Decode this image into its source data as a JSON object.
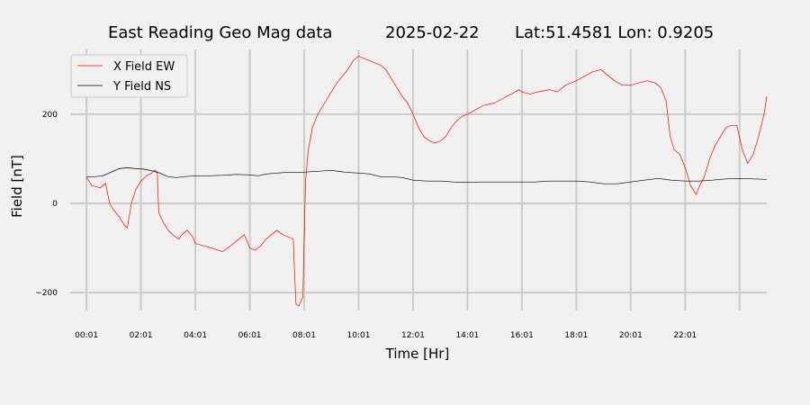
{
  "chart_data": {
    "type": "line",
    "title_parts": [
      "East Reading Geo Mag data",
      "2025-02-22",
      "Lat:51.4581  Lon: 0.9205"
    ],
    "xlabel": "Time  [Hr]",
    "ylabel": "Field  [nT]",
    "xlim": [
      -0.6,
      25.0
    ],
    "ylim": [
      -240,
      345
    ],
    "x_ticks": [
      {
        "x": 0.0,
        "label": "00:01"
      },
      {
        "x": 2.0,
        "label": "02:01"
      },
      {
        "x": 4.0,
        "label": "04:01"
      },
      {
        "x": 6.0,
        "label": "06:01"
      },
      {
        "x": 8.0,
        "label": "08:01"
      },
      {
        "x": 10.0,
        "label": "10:01"
      },
      {
        "x": 12.0,
        "label": "12:01"
      },
      {
        "x": 14.0,
        "label": "14:01"
      },
      {
        "x": 16.0,
        "label": "16:01"
      },
      {
        "x": 18.0,
        "label": "18:01"
      },
      {
        "x": 20.0,
        "label": "20:01"
      },
      {
        "x": 22.0,
        "label": "22:01"
      }
    ],
    "extra_vgrid": [
      24.0
    ],
    "y_ticks": [
      {
        "y": -200,
        "label": "−200"
      },
      {
        "y": 0,
        "label": "0"
      },
      {
        "y": 200,
        "label": "200"
      }
    ],
    "grid": true,
    "legend_position": "top-left",
    "series": [
      {
        "name": "X Field EW",
        "color": "#ff0000",
        "points": [
          [
            0.0,
            58
          ],
          [
            0.2,
            40
          ],
          [
            0.5,
            35
          ],
          [
            0.7,
            45
          ],
          [
            0.85,
            0
          ],
          [
            1.0,
            -15
          ],
          [
            1.2,
            -30
          ],
          [
            1.4,
            -50
          ],
          [
            1.5,
            -55
          ],
          [
            1.65,
            0
          ],
          [
            1.8,
            30
          ],
          [
            2.0,
            50
          ],
          [
            2.2,
            62
          ],
          [
            2.4,
            68
          ],
          [
            2.5,
            75
          ],
          [
            2.6,
            70
          ],
          [
            2.65,
            -20
          ],
          [
            2.8,
            -40
          ],
          [
            3.0,
            -60
          ],
          [
            3.2,
            -72
          ],
          [
            3.4,
            -80
          ],
          [
            3.5,
            -70
          ],
          [
            3.7,
            -60
          ],
          [
            3.9,
            -75
          ],
          [
            4.0,
            -90
          ],
          [
            4.3,
            -95
          ],
          [
            4.6,
            -100
          ],
          [
            5.0,
            -108
          ],
          [
            5.3,
            -95
          ],
          [
            5.6,
            -80
          ],
          [
            5.8,
            -70
          ],
          [
            6.0,
            -100
          ],
          [
            6.2,
            -105
          ],
          [
            6.4,
            -95
          ],
          [
            6.6,
            -80
          ],
          [
            6.8,
            -70
          ],
          [
            7.0,
            -60
          ],
          [
            7.2,
            -70
          ],
          [
            7.4,
            -75
          ],
          [
            7.6,
            -80
          ],
          [
            7.65,
            -160
          ],
          [
            7.7,
            -225
          ],
          [
            7.8,
            -230
          ],
          [
            7.95,
            -210
          ],
          [
            8.05,
            50
          ],
          [
            8.15,
            120
          ],
          [
            8.3,
            170
          ],
          [
            8.5,
            200
          ],
          [
            8.8,
            230
          ],
          [
            9.0,
            250
          ],
          [
            9.2,
            270
          ],
          [
            9.4,
            285
          ],
          [
            9.6,
            300
          ],
          [
            9.8,
            320
          ],
          [
            10.0,
            330
          ],
          [
            10.2,
            325
          ],
          [
            10.4,
            320
          ],
          [
            10.6,
            315
          ],
          [
            10.8,
            310
          ],
          [
            11.0,
            300
          ],
          [
            11.2,
            280
          ],
          [
            11.4,
            260
          ],
          [
            11.6,
            240
          ],
          [
            11.8,
            225
          ],
          [
            12.0,
            200
          ],
          [
            12.2,
            170
          ],
          [
            12.4,
            150
          ],
          [
            12.6,
            140
          ],
          [
            12.8,
            135
          ],
          [
            13.0,
            140
          ],
          [
            13.2,
            150
          ],
          [
            13.4,
            170
          ],
          [
            13.6,
            185
          ],
          [
            13.8,
            195
          ],
          [
            14.0,
            200
          ],
          [
            14.3,
            210
          ],
          [
            14.6,
            220
          ],
          [
            15.0,
            225
          ],
          [
            15.3,
            235
          ],
          [
            15.6,
            245
          ],
          [
            15.9,
            255
          ],
          [
            16.0,
            250
          ],
          [
            16.3,
            245
          ],
          [
            16.6,
            250
          ],
          [
            17.0,
            255
          ],
          [
            17.3,
            250
          ],
          [
            17.6,
            265
          ],
          [
            18.0,
            275
          ],
          [
            18.3,
            285
          ],
          [
            18.6,
            295
          ],
          [
            18.9,
            300
          ],
          [
            19.1,
            290
          ],
          [
            19.4,
            275
          ],
          [
            19.7,
            265
          ],
          [
            20.0,
            265
          ],
          [
            20.3,
            270
          ],
          [
            20.6,
            275
          ],
          [
            20.9,
            270
          ],
          [
            21.1,
            260
          ],
          [
            21.3,
            230
          ],
          [
            21.45,
            150
          ],
          [
            21.6,
            120
          ],
          [
            21.8,
            110
          ],
          [
            22.0,
            80
          ],
          [
            22.2,
            40
          ],
          [
            22.4,
            20
          ],
          [
            22.5,
            35
          ],
          [
            22.7,
            60
          ],
          [
            22.9,
            100
          ],
          [
            23.1,
            130
          ],
          [
            23.3,
            150
          ],
          [
            23.5,
            170
          ],
          [
            23.7,
            175
          ],
          [
            23.9,
            175
          ],
          [
            24.1,
            120
          ],
          [
            24.3,
            90
          ],
          [
            24.5,
            110
          ],
          [
            24.7,
            150
          ],
          [
            24.9,
            200
          ],
          [
            25.0,
            240
          ]
        ]
      },
      {
        "name": "Y Field NS",
        "color": "#000000",
        "points": [
          [
            0.0,
            60
          ],
          [
            0.3,
            60
          ],
          [
            0.6,
            62
          ],
          [
            0.9,
            70
          ],
          [
            1.2,
            78
          ],
          [
            1.5,
            80
          ],
          [
            1.8,
            78
          ],
          [
            2.1,
            77
          ],
          [
            2.4,
            73
          ],
          [
            2.7,
            68
          ],
          [
            3.0,
            60
          ],
          [
            3.3,
            58
          ],
          [
            3.6,
            60
          ],
          [
            4.0,
            62
          ],
          [
            4.5,
            62
          ],
          [
            5.0,
            63
          ],
          [
            5.5,
            65
          ],
          [
            6.0,
            64
          ],
          [
            6.3,
            62
          ],
          [
            6.6,
            66
          ],
          [
            7.0,
            68
          ],
          [
            7.5,
            70
          ],
          [
            8.0,
            70
          ],
          [
            8.5,
            72
          ],
          [
            9.0,
            74
          ],
          [
            9.5,
            70
          ],
          [
            10.0,
            68
          ],
          [
            10.4,
            66
          ],
          [
            10.8,
            60
          ],
          [
            11.2,
            60
          ],
          [
            11.6,
            58
          ],
          [
            12.0,
            52
          ],
          [
            12.5,
            50
          ],
          [
            13.0,
            50
          ],
          [
            13.5,
            48
          ],
          [
            14.0,
            47
          ],
          [
            14.5,
            48
          ],
          [
            15.0,
            48
          ],
          [
            15.5,
            48
          ],
          [
            16.0,
            48
          ],
          [
            16.5,
            48
          ],
          [
            17.0,
            50
          ],
          [
            17.5,
            50
          ],
          [
            18.0,
            50
          ],
          [
            18.5,
            48
          ],
          [
            19.0,
            44
          ],
          [
            19.5,
            44
          ],
          [
            20.0,
            48
          ],
          [
            20.5,
            52
          ],
          [
            21.0,
            56
          ],
          [
            21.5,
            52
          ],
          [
            22.0,
            50
          ],
          [
            22.5,
            50
          ],
          [
            23.0,
            52
          ],
          [
            23.5,
            55
          ],
          [
            24.0,
            56
          ],
          [
            24.5,
            55
          ],
          [
            25.0,
            54
          ]
        ]
      }
    ]
  }
}
